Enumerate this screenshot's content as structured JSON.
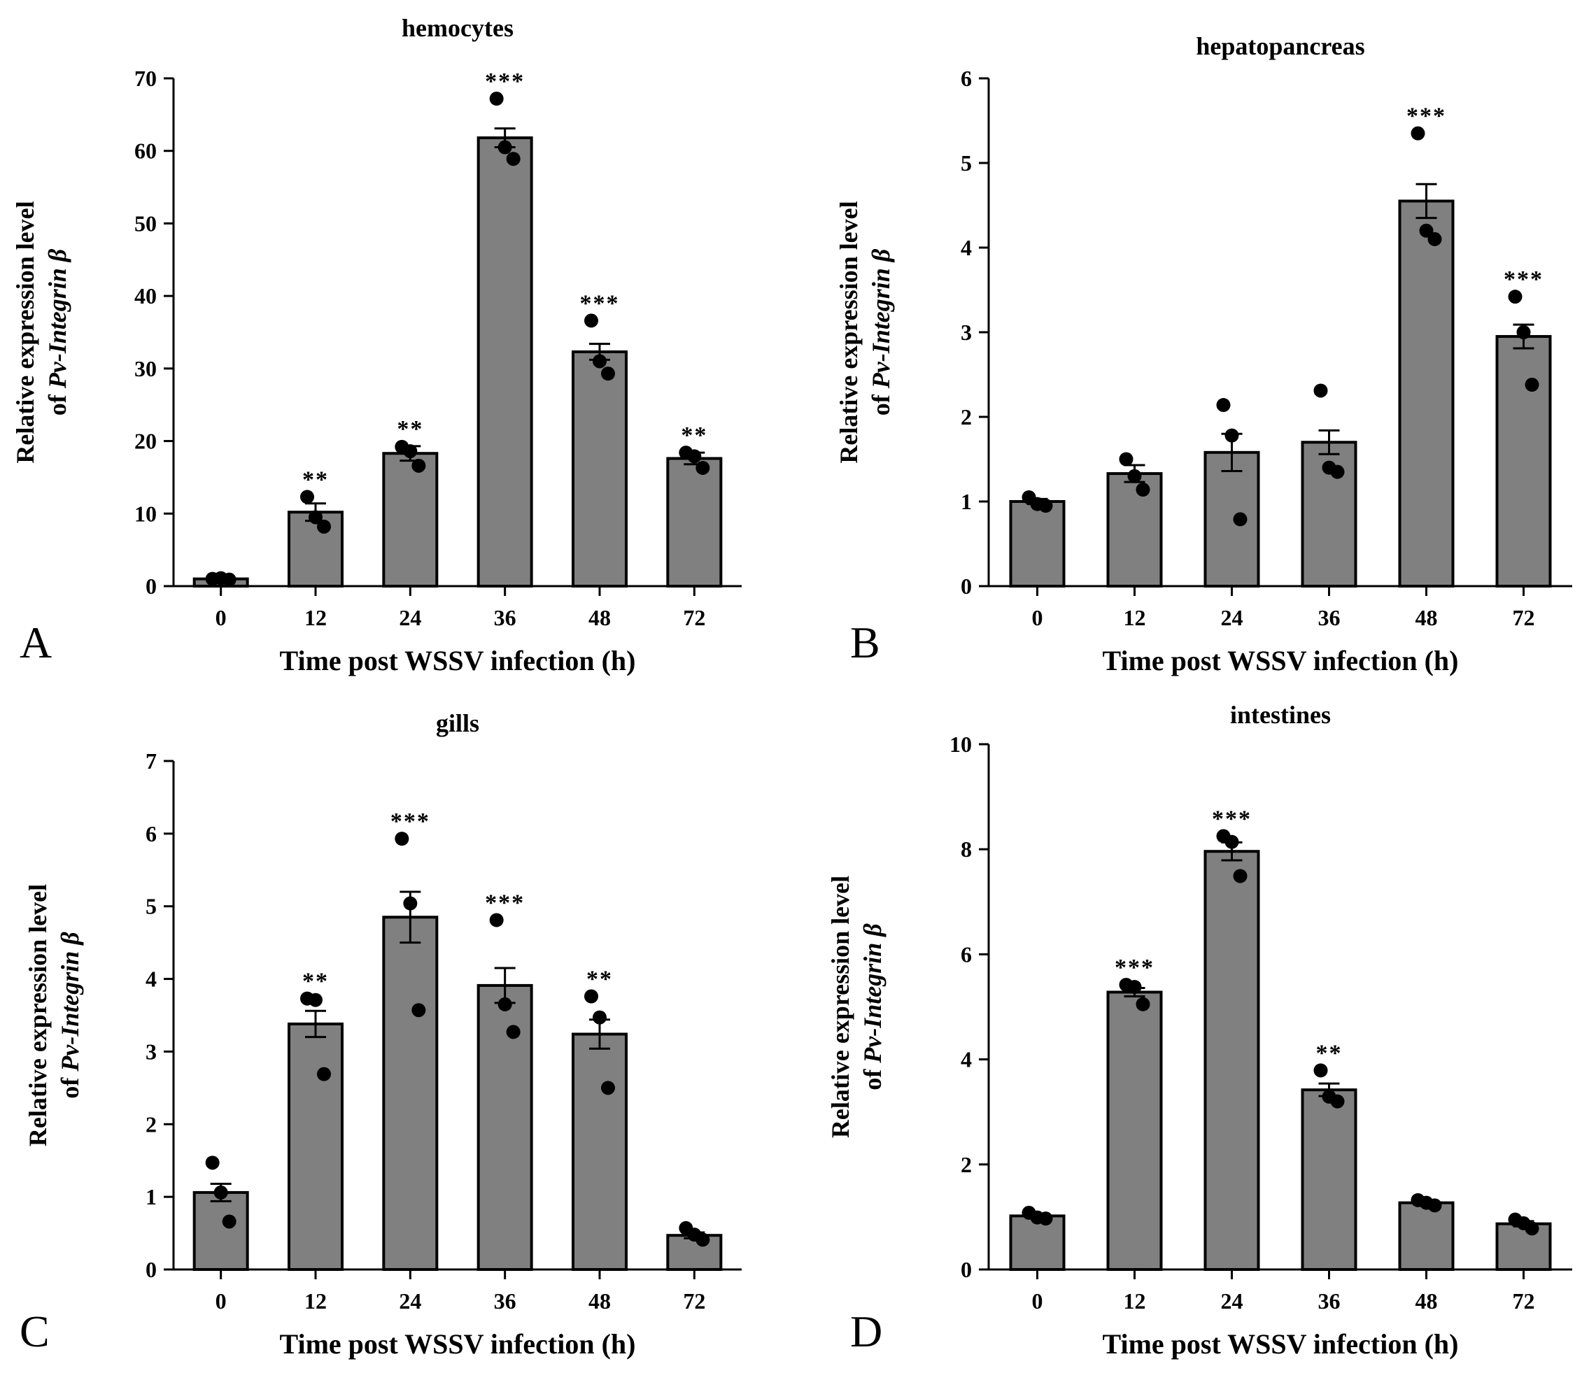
{
  "figure": {
    "panels": [
      "A",
      "B",
      "C",
      "D"
    ]
  },
  "chart_data": [
    {
      "panel": "A",
      "type": "bar",
      "title": "hemocytes",
      "xlabel": "Time post WSSV infection (h)",
      "ylabel_line1": "Relative expression level",
      "ylabel_line2_prefix": "of ",
      "ylabel_line2_italic": "Pv-Integrin β",
      "categories": [
        "0",
        "12",
        "24",
        "36",
        "48",
        "72"
      ],
      "values": [
        1.0,
        10.2,
        18.3,
        61.8,
        32.3,
        17.6
      ],
      "errors": [
        0.2,
        1.2,
        1.0,
        1.3,
        1.1,
        0.8
      ],
      "points": [
        [
          1.0,
          1.1,
          0.9
        ],
        [
          12.3,
          9.5,
          8.2
        ],
        [
          19.2,
          18.6,
          16.6
        ],
        [
          67.2,
          60.5,
          58.9
        ],
        [
          36.6,
          31.0,
          29.3
        ],
        [
          18.4,
          17.9,
          16.3
        ]
      ],
      "significance": [
        "",
        "**",
        "**",
        "***",
        "***",
        "**"
      ],
      "ylim": [
        0,
        70
      ],
      "yticks": [
        0,
        10,
        20,
        30,
        40,
        50,
        60,
        70
      ],
      "bar_color": "#808080"
    },
    {
      "panel": "B",
      "type": "bar",
      "title": "hepatopancreas",
      "xlabel": "Time post WSSV infection (h)",
      "ylabel_line1": "Relative expression level",
      "ylabel_line2_prefix": "of ",
      "ylabel_line2_italic": "Pv-Integrin β",
      "categories": [
        "0",
        "12",
        "24",
        "36",
        "48",
        "72"
      ],
      "values": [
        1.0,
        1.33,
        1.58,
        1.7,
        4.55,
        2.95
      ],
      "errors": [
        0.03,
        0.1,
        0.22,
        0.14,
        0.2,
        0.14
      ],
      "points": [
        [
          1.05,
          0.97,
          0.95
        ],
        [
          1.5,
          1.3,
          1.14
        ],
        [
          2.14,
          1.78,
          0.79
        ],
        [
          2.31,
          1.4,
          1.35
        ],
        [
          5.35,
          4.2,
          4.1
        ],
        [
          3.42,
          3.0,
          2.38
        ]
      ],
      "significance": [
        "",
        "",
        "",
        "",
        "***",
        "***"
      ],
      "ylim": [
        0,
        6
      ],
      "yticks": [
        0,
        1,
        2,
        3,
        4,
        5,
        6
      ],
      "bar_color": "#808080"
    },
    {
      "panel": "C",
      "type": "bar",
      "title": "gills",
      "xlabel": "Time post WSSV infection (h)",
      "ylabel_line1": "Relative expression level",
      "ylabel_line2_prefix": "of ",
      "ylabel_line2_italic": "Pv-Integrin β",
      "categories": [
        "0",
        "12",
        "24",
        "36",
        "48",
        "72"
      ],
      "values": [
        1.06,
        3.38,
        4.85,
        3.91,
        3.24,
        0.47
      ],
      "errors": [
        0.12,
        0.18,
        0.35,
        0.24,
        0.2,
        0.04
      ],
      "points": [
        [
          1.47,
          1.06,
          0.66
        ],
        [
          3.73,
          3.71,
          2.69
        ],
        [
          5.93,
          5.04,
          3.57
        ],
        [
          4.81,
          3.65,
          3.27
        ],
        [
          3.76,
          3.47,
          2.5
        ],
        [
          0.57,
          0.48,
          0.41
        ]
      ],
      "significance": [
        "",
        "**",
        "***",
        "***",
        "**",
        ""
      ],
      "ylim": [
        0,
        7
      ],
      "yticks": [
        0,
        1,
        2,
        3,
        4,
        5,
        6,
        7
      ],
      "bar_color": "#808080"
    },
    {
      "panel": "D",
      "type": "bar",
      "title": "intestines",
      "xlabel": "Time post WSSV infection (h)",
      "ylabel_line1": "Relative expression level",
      "ylabel_line2_prefix": "of ",
      "ylabel_line2_italic": "Pv-Integrin β",
      "categories": [
        "0",
        "12",
        "24",
        "36",
        "48",
        "72"
      ],
      "values": [
        1.02,
        5.28,
        7.96,
        3.42,
        1.27,
        0.87
      ],
      "errors": [
        0.04,
        0.08,
        0.17,
        0.12,
        0.04,
        0.05
      ],
      "points": [
        [
          1.08,
          0.99,
          0.97
        ],
        [
          5.42,
          5.38,
          5.05
        ],
        [
          8.25,
          8.14,
          7.49
        ],
        [
          3.79,
          3.29,
          3.2
        ],
        [
          1.32,
          1.27,
          1.22
        ],
        [
          0.95,
          0.88,
          0.78
        ]
      ],
      "significance": [
        "",
        "***",
        "***",
        "**",
        "",
        ""
      ],
      "ylim": [
        0,
        10
      ],
      "yticks": [
        0,
        2,
        4,
        6,
        8,
        10
      ],
      "bar_color": "#808080"
    }
  ]
}
